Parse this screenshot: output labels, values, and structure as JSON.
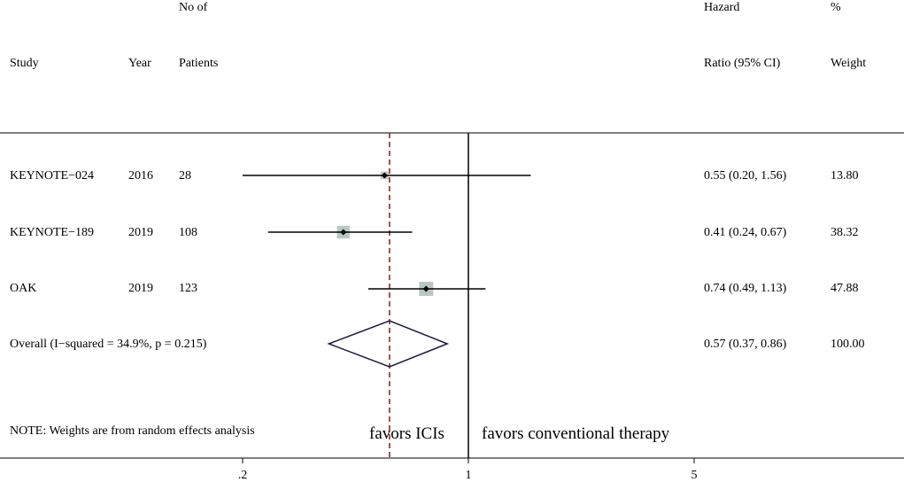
{
  "header": {
    "study": "Study",
    "year": "Year",
    "patients_line1": "No of",
    "patients_line2": "Patients",
    "hr_line1": "Hazard",
    "hr_line2": "Ratio (95% CI)",
    "weight_line1": "%",
    "weight_line2": "Weight"
  },
  "studies": [
    {
      "name": "KEYNOTE−024",
      "year": "2016",
      "patients": "28",
      "hr_text": "0.55 (0.20, 1.56)",
      "weight_text": "13.80"
    },
    {
      "name": "KEYNOTE−189",
      "year": "2019",
      "patients": "108",
      "hr_text": "0.41 (0.24, 0.67)",
      "weight_text": "38.32"
    },
    {
      "name": "OAK",
      "year": "2019",
      "patients": "123",
      "hr_text": "0.74 (0.49, 1.13)",
      "weight_text": "47.88"
    }
  ],
  "overall": {
    "label": "Overall  (I−squared = 34.9%, p = 0.215)",
    "hr_text": "0.57 (0.37, 0.86)",
    "weight_text": "100.00"
  },
  "note": "NOTE: Weights are from random effects analysis",
  "favors_left": "favors ICIs",
  "favors_right": "favors conventional therapy",
  "colors": {
    "weight_box": "#b9c7c3",
    "overall_line": "#8b1a1a",
    "axis": "#000000"
  },
  "chart_data": {
    "type": "forest",
    "x_scale": "log",
    "x_ticks": [
      0.2,
      1,
      5
    ],
    "x_tick_labels": [
      ".2",
      "1",
      "5"
    ],
    "null_line": 1,
    "overall_line": 0.57,
    "studies": [
      {
        "name": "KEYNOTE−024",
        "hr": 0.55,
        "lower": 0.2,
        "upper": 1.56,
        "weight": 13.8
      },
      {
        "name": "KEYNOTE−189",
        "hr": 0.41,
        "lower": 0.24,
        "upper": 0.67,
        "weight": 38.32
      },
      {
        "name": "OAK",
        "hr": 0.74,
        "lower": 0.49,
        "upper": 1.13,
        "weight": 47.88
      }
    ],
    "overall": {
      "hr": 0.57,
      "lower": 0.37,
      "upper": 0.86,
      "weight": 100.0
    }
  }
}
